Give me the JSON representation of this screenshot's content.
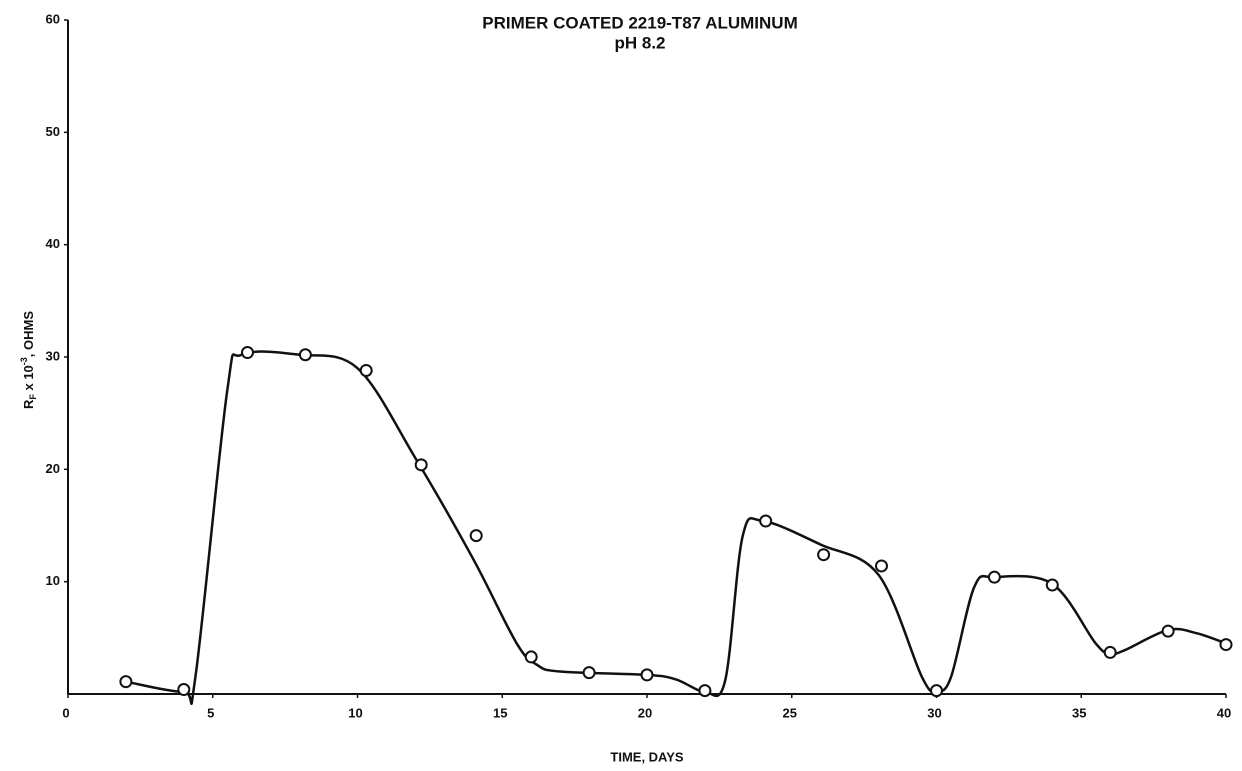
{
  "chart_data": {
    "type": "scatter",
    "title": "PRIMER COATED 2219-T87 ALUMINUM",
    "subtitle": "pH 8.2",
    "x_label": "TIME, DAYS",
    "y_label_parts": [
      "R",
      "F",
      " x 10",
      "-3",
      ", OHMS"
    ],
    "xlim": [
      0,
      40
    ],
    "ylim": [
      0,
      60
    ],
    "xticks": [
      0,
      5,
      10,
      15,
      20,
      25,
      30,
      35,
      40
    ],
    "yticks": [
      10,
      20,
      30,
      40,
      50,
      60
    ],
    "color": "#111111",
    "points": {
      "x": [
        2,
        4,
        6.2,
        8.2,
        10.3,
        12.2,
        14.1,
        16,
        18,
        20,
        22,
        24.1,
        26.1,
        28.1,
        30,
        32,
        34,
        36,
        38,
        40
      ],
      "values": [
        1.1,
        0.4,
        30.4,
        30.2,
        28.8,
        20.4,
        14.1,
        3.3,
        1.9,
        1.7,
        0.3,
        15.4,
        12.4,
        11.4,
        0.3,
        10.4,
        9.7,
        3.7,
        5.6,
        4.4
      ]
    },
    "curve": {
      "x": [
        2,
        4,
        4.4,
        5.5,
        6,
        8,
        10,
        12,
        14,
        15.5,
        16.2,
        17,
        20,
        21,
        22,
        22.7,
        23.3,
        24,
        26,
        28,
        29.5,
        30,
        30.5,
        31.3,
        32,
        34,
        35.5,
        36,
        36.5,
        38,
        39,
        40
      ],
      "values": [
        1.1,
        0.2,
        1.5,
        27,
        30.2,
        30.2,
        29,
        21,
        12,
        4.5,
        2.6,
        2.0,
        1.7,
        1.3,
        0.2,
        1.2,
        14,
        15.4,
        13.3,
        10.6,
        1.5,
        0.3,
        1.5,
        9.5,
        10.4,
        9.8,
        4.5,
        3.6,
        3.9,
        5.7,
        5.4,
        4.5
      ]
    }
  }
}
